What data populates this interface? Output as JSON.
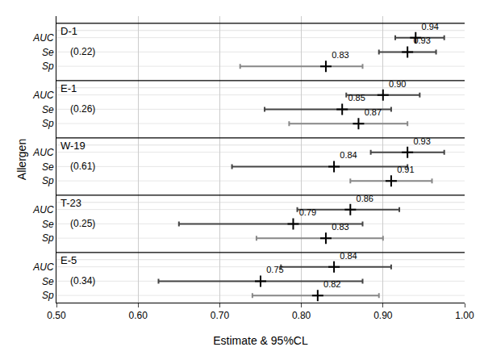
{
  "chart_data": {
    "type": "forest",
    "xlabel": "Estimate & 95%CL",
    "ylabel": "Allergen",
    "xlim": [
      0.5,
      1.0
    ],
    "xticks": [
      {
        "value": 0.5,
        "label": "0.50"
      },
      {
        "value": 0.6,
        "label": "0.60"
      },
      {
        "value": 0.7,
        "label": "0.70"
      },
      {
        "value": 0.8,
        "label": "0.80"
      },
      {
        "value": 0.9,
        "label": "0.90"
      },
      {
        "value": 1.0,
        "label": "1.00"
      }
    ],
    "grid": true,
    "data_labels": true,
    "marker": "plus",
    "color": "#000000",
    "groups": [
      {
        "name": "D-1",
        "annotation": "(0.22)",
        "categories": [
          "AUC",
          "Se",
          "Sp"
        ],
        "values": [
          0.94,
          0.93,
          0.83
        ],
        "value_labels": [
          "0.94",
          "0.93",
          "0.83"
        ],
        "lo": [
          0.915,
          0.895,
          0.725
        ],
        "hi": [
          0.975,
          0.965,
          0.875
        ],
        "colors": [
          "#444444",
          "#444444",
          "#888888"
        ]
      },
      {
        "name": "E-1",
        "annotation": "(0.26)",
        "categories": [
          "AUC",
          "Se",
          "Sp"
        ],
        "values": [
          0.9,
          0.85,
          0.87
        ],
        "value_labels": [
          "0.90",
          "0.85",
          "0.87"
        ],
        "lo": [
          0.855,
          0.755,
          0.785
        ],
        "hi": [
          0.945,
          0.91,
          0.93
        ],
        "colors": [
          "#444444",
          "#444444",
          "#888888"
        ]
      },
      {
        "name": "W-19",
        "annotation": "(0.61)",
        "categories": [
          "AUC",
          "Se",
          "Sp"
        ],
        "values": [
          0.93,
          0.84,
          0.91
        ],
        "value_labels": [
          "0.93",
          "0.84",
          "0.91"
        ],
        "lo": [
          0.885,
          0.715,
          0.86
        ],
        "hi": [
          0.975,
          0.93,
          0.96
        ],
        "colors": [
          "#444444",
          "#444444",
          "#888888"
        ]
      },
      {
        "name": "T-23",
        "annotation": "(0.25)",
        "categories": [
          "AUC",
          "Se",
          "Sp"
        ],
        "values": [
          0.86,
          0.79,
          0.83
        ],
        "value_labels": [
          "0.86",
          "0.79",
          "0.83"
        ],
        "lo": [
          0.795,
          0.65,
          0.745
        ],
        "hi": [
          0.92,
          0.875,
          0.9
        ],
        "colors": [
          "#444444",
          "#444444",
          "#888888"
        ]
      },
      {
        "name": "E-5",
        "annotation": "(0.34)",
        "categories": [
          "AUC",
          "Se",
          "Sp"
        ],
        "values": [
          0.84,
          0.75,
          0.82
        ],
        "value_labels": [
          "0.84",
          "0.75",
          "0.82"
        ],
        "lo": [
          0.775,
          0.625,
          0.74
        ],
        "hi": [
          0.91,
          0.875,
          0.895
        ],
        "colors": [
          "#444444",
          "#444444",
          "#888888"
        ]
      }
    ]
  }
}
